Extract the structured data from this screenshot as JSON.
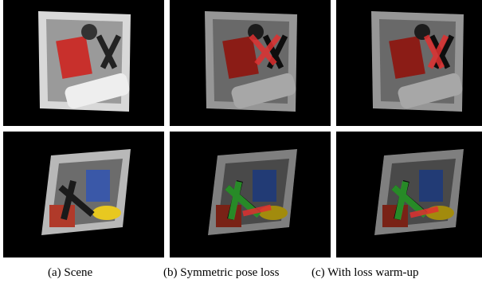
{
  "figure": {
    "captions": [
      "(a) Scene",
      "(b) Symmetric pose loss",
      "(c) With loss warm-up"
    ]
  }
}
